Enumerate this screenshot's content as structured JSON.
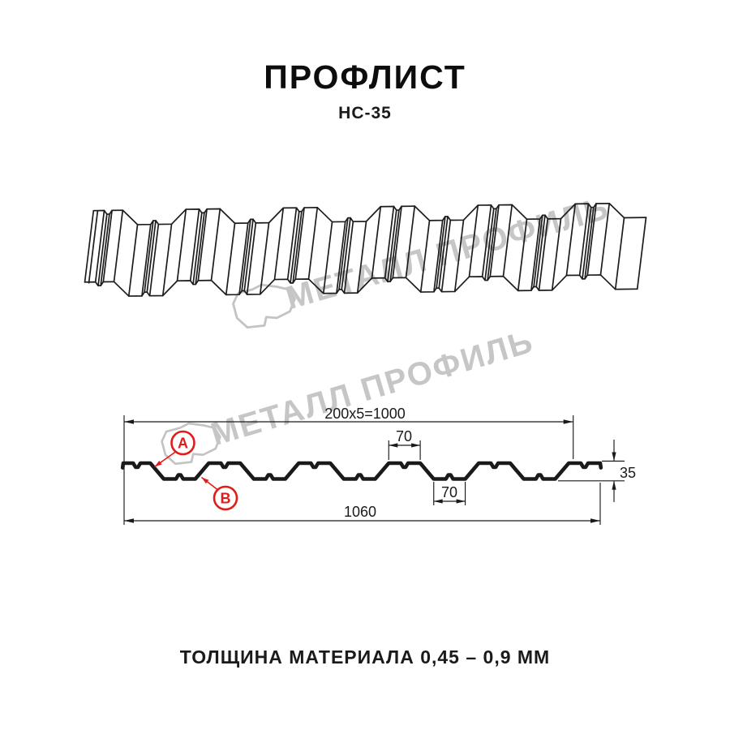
{
  "header": {
    "title": "ПРОФЛИСТ",
    "subtitle": "НС-35"
  },
  "watermark": {
    "text": "МЕТАЛЛ ПРОФИЛЬ",
    "color": "#c6c6c6"
  },
  "profile_drawing": {
    "description": "corrugated-sheet-3d-view"
  },
  "diagram": {
    "dimensions": {
      "module_width": "200x5=1000",
      "crest_width": "70",
      "valley_width": "70",
      "profile_height": "35",
      "total_width": "1060"
    },
    "markers": {
      "a": "А",
      "b": "В"
    },
    "accent_color": "#e21b1b",
    "line_color": "#1a1a1a"
  },
  "footer": {
    "text": "ТОЛЩИНА МАТЕРИАЛА 0,45 – 0,9 ММ"
  }
}
